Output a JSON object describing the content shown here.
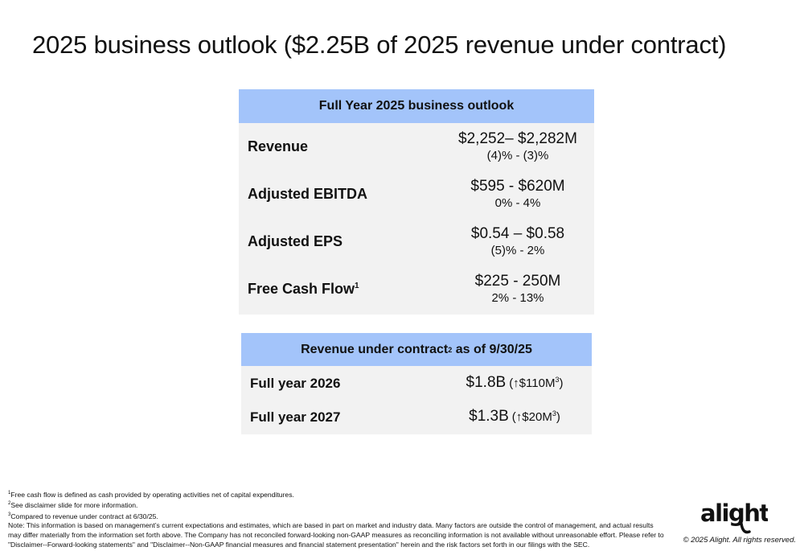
{
  "title": "2025 business outlook ($2.25B of 2025 revenue under contract)",
  "outlook": {
    "header": "Full Year 2025 business outlook",
    "rows": [
      {
        "label": "Revenue",
        "sup": "",
        "value": "$2,252– $2,282M",
        "range": "(4)% - (3)%"
      },
      {
        "label": "Adjusted EBITDA",
        "sup": "",
        "value": "$595 - $620M",
        "range": "0% - 4%"
      },
      {
        "label": "Adjusted EPS",
        "sup": "",
        "value": "$0.54 – $0.58",
        "range": "(5)% - 2%"
      },
      {
        "label": "Free Cash Flow",
        "sup": "1",
        "value": "$225 - 250M",
        "range": "2% - 13%"
      }
    ]
  },
  "contract": {
    "header_pre": "Revenue under contract",
    "header_sup": "2",
    "header_post": " as of 9/30/25",
    "rows": [
      {
        "label": "Full year 2026",
        "value": "$1.8B",
        "note": "(↑$110M",
        "note_sup": "3",
        "note_end": ")"
      },
      {
        "label": "Full year 2027",
        "value": "$1.3B",
        "note": "(↑$20M",
        "note_sup": "3",
        "note_end": ")"
      }
    ]
  },
  "footnotes": [
    {
      "sup": "1",
      "text": "Free cash flow is defined as cash provided by operating activities net of capital expenditures."
    },
    {
      "sup": "2",
      "text": "See disclaimer slide for more information."
    },
    {
      "sup": "3",
      "text": "Compared to revenue under contract at 6/30/25."
    },
    {
      "sup": "",
      "text": "Note: This information is based on management’s current expectations and estimates, which are based in part on market and industry data. Many factors are outside the control of management, and actual results may differ materially from the information set forth above. The Company has not reconciled forward-looking non-GAAP measures as reconciling information is not available without unreasonable effort. Please refer to \"Disclaimer--Forward-looking statements\" and \"Disclaimer--Non-GAAP financial measures and financial statement presentation\" herein and the risk factors set forth in our filings with the SEC."
    }
  ],
  "logo": {
    "text": "alight",
    "icon": "alight-logo-icon"
  },
  "copyright": "© 2025 Alight. All rights reserved.",
  "colors": {
    "header_fill": "#a3c4fa",
    "table_fill": "#f2f2f2",
    "logo_color": "#111111"
  }
}
